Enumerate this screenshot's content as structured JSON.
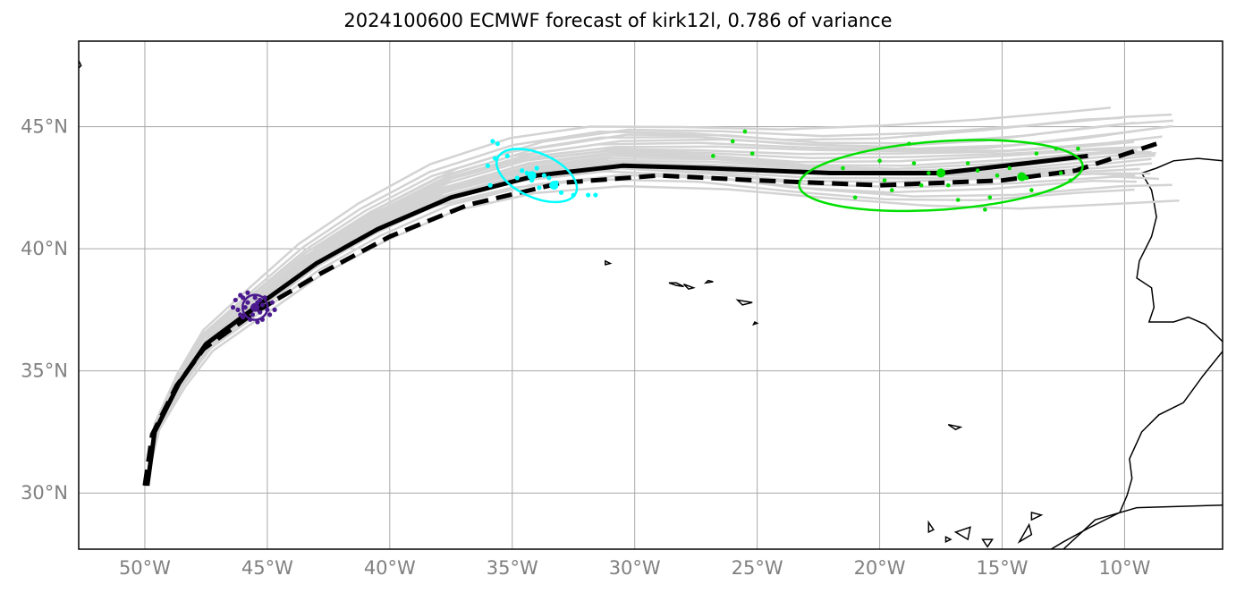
{
  "title": "2024100600 ECMWF forecast of kirk12l, 0.786 of variance",
  "map": {
    "lon_range": [
      -52.7,
      -6.0
    ],
    "lat_range": [
      27.7,
      48.5
    ],
    "lon_ticks": [
      -50,
      -45,
      -40,
      -35,
      -30,
      -25,
      -20,
      -15,
      -10
    ],
    "lat_ticks": [
      30,
      35,
      40,
      45
    ],
    "lon_tick_labels": [
      "50°W",
      "45°W",
      "40°W",
      "35°W",
      "30°W",
      "25°W",
      "20°W",
      "15°W",
      "10°W"
    ],
    "lat_tick_labels": [
      "30°N",
      "35°N",
      "40°N",
      "45°N"
    ],
    "grid": true
  },
  "colors": {
    "ensemble": "#d3d3d3",
    "track": "#000000",
    "day1": "#4b1a8f",
    "day2": "#00ffff",
    "day4": "#00e000",
    "grid": "#a8a8a8",
    "coast": "#000000"
  },
  "chart_data": {
    "type": "map-track",
    "solid_track": [
      [
        -49.9,
        30.3
      ],
      [
        -49.6,
        32.5
      ],
      [
        -48.6,
        34.5
      ],
      [
        -47.5,
        36.1
      ],
      [
        -45.5,
        37.6
      ],
      [
        -43.0,
        39.4
      ],
      [
        -40.5,
        40.8
      ],
      [
        -37.5,
        42.1
      ],
      [
        -34.0,
        43.0
      ],
      [
        -30.5,
        43.4
      ],
      [
        -27.0,
        43.3
      ],
      [
        -22.0,
        43.1
      ],
      [
        -17.5,
        43.1
      ],
      [
        -14.0,
        43.5
      ],
      [
        -11.5,
        43.8
      ]
    ],
    "dashed_track": [
      [
        -50.0,
        30.3
      ],
      [
        -49.7,
        32.4
      ],
      [
        -48.7,
        34.4
      ],
      [
        -47.6,
        35.9
      ],
      [
        -45.5,
        37.4
      ],
      [
        -42.8,
        39.0
      ],
      [
        -40.0,
        40.5
      ],
      [
        -36.8,
        41.8
      ],
      [
        -33.0,
        42.7
      ],
      [
        -29.0,
        43.0
      ],
      [
        -25.0,
        42.8
      ],
      [
        -20.0,
        42.6
      ],
      [
        -15.0,
        42.8
      ],
      [
        -12.0,
        43.2
      ],
      [
        -8.7,
        44.3
      ]
    ],
    "ensemble_base": [
      [
        -49.9,
        30.6
      ],
      [
        -49.5,
        32.7
      ],
      [
        -48.5,
        34.6
      ],
      [
        -47.4,
        36.2
      ],
      [
        -45.5,
        37.7
      ],
      [
        -43.2,
        39.5
      ],
      [
        -40.7,
        41.0
      ],
      [
        -37.8,
        42.4
      ],
      [
        -34.5,
        43.3
      ],
      [
        -31.0,
        43.7
      ],
      [
        -27.0,
        43.6
      ],
      [
        -23.0,
        43.3
      ],
      [
        -19.0,
        43.2
      ],
      [
        -15.0,
        43.3
      ],
      [
        -11.0,
        43.6
      ],
      [
        -9.0,
        43.7
      ]
    ],
    "ensemble_offsets": [
      -1.8,
      -1.4,
      -1.2,
      -1.0,
      -0.8,
      -0.6,
      -0.5,
      -0.35,
      -0.2,
      -0.1,
      0,
      0.1,
      0.2,
      0.3,
      0.45,
      0.6,
      0.75,
      0.9,
      1.05,
      1.2,
      1.35,
      1.5,
      1.7,
      1.9,
      2.2
    ],
    "day1_center": [
      -45.5,
      37.6
    ],
    "day1_points": [
      [
        -46.1,
        38.1
      ],
      [
        -45.6,
        37.3
      ],
      [
        -45.0,
        37.5
      ],
      [
        -45.8,
        37.8
      ],
      [
        -45.3,
        37.9
      ],
      [
        -46.0,
        37.2
      ],
      [
        -45.4,
        37.0
      ],
      [
        -45.9,
        37.6
      ],
      [
        -45.2,
        37.7
      ],
      [
        -44.7,
        37.5
      ],
      [
        -45.5,
        38.0
      ],
      [
        -46.2,
        37.5
      ],
      [
        -45.7,
        37.1
      ],
      [
        -45.1,
        38.0
      ],
      [
        -45.6,
        37.6
      ],
      [
        -44.9,
        37.3
      ],
      [
        -46.3,
        37.9
      ],
      [
        -45.3,
        37.4
      ],
      [
        -46.0,
        38.0
      ],
      [
        -45.4,
        37.8
      ],
      [
        -46.1,
        37.3
      ],
      [
        -45.8,
        38.2
      ],
      [
        -44.8,
        37.8
      ],
      [
        -45.2,
        37.1
      ],
      [
        -46.4,
        37.6
      ]
    ],
    "day2_ellipse": {
      "center": [
        -34.0,
        43.0
      ],
      "semi_lon": 1.75,
      "semi_lat": 0.9,
      "angle_deg": 24
    },
    "day2_points": [
      [
        -35.8,
        44.4
      ],
      [
        -35.6,
        44.3
      ],
      [
        -35.7,
        43.7
      ],
      [
        -36.0,
        43.4
      ],
      [
        -35.2,
        43.8
      ],
      [
        -34.6,
        43.2
      ],
      [
        -34.2,
        42.8
      ],
      [
        -34.0,
        43.3
      ],
      [
        -33.7,
        43.0
      ],
      [
        -33.4,
        42.6
      ],
      [
        -33.0,
        42.3
      ],
      [
        -32.5,
        42.2
      ],
      [
        -31.9,
        42.2
      ],
      [
        -31.6,
        42.2
      ],
      [
        -35.9,
        42.6
      ],
      [
        -34.4,
        43.1
      ],
      [
        -33.2,
        42.7
      ],
      [
        -34.8,
        42.9
      ],
      [
        -33.9,
        42.5
      ],
      [
        -33.5,
        42.9
      ]
    ],
    "day4_ellipse": {
      "center": [
        -17.5,
        43.0
      ],
      "semi_lon": 5.8,
      "semi_lat": 1.4,
      "angle_deg": -4
    },
    "day4_points": [
      [
        -25.5,
        44.8
      ],
      [
        -26.0,
        44.4
      ],
      [
        -26.8,
        43.8
      ],
      [
        -25.2,
        43.9
      ],
      [
        -21.5,
        43.3
      ],
      [
        -21.0,
        42.1
      ],
      [
        -20.0,
        43.6
      ],
      [
        -19.8,
        42.8
      ],
      [
        -18.8,
        44.3
      ],
      [
        -18.6,
        43.5
      ],
      [
        -18.0,
        43.1
      ],
      [
        -17.5,
        43.2
      ],
      [
        -17.2,
        42.6
      ],
      [
        -16.8,
        42.0
      ],
      [
        -16.4,
        43.5
      ],
      [
        -16.0,
        43.2
      ],
      [
        -15.7,
        41.6
      ],
      [
        -15.5,
        42.1
      ],
      [
        -14.7,
        43.3
      ],
      [
        -14.2,
        43.0
      ],
      [
        -13.8,
        42.4
      ],
      [
        -13.6,
        43.9
      ],
      [
        -12.8,
        44.1
      ],
      [
        -12.6,
        43.1
      ],
      [
        -11.9,
        44.1
      ],
      [
        -12.2,
        42.8
      ],
      [
        -19.5,
        42.4
      ],
      [
        -18.3,
        42.6
      ],
      [
        -15.2,
        43.0
      ],
      [
        -14.0,
        42.9
      ]
    ]
  },
  "geography": {
    "iberia": [
      [
        -6.0,
        43.6
      ],
      [
        -7.0,
        43.7
      ],
      [
        -8.0,
        43.6
      ],
      [
        -8.7,
        43.3
      ],
      [
        -9.3,
        43.1
      ],
      [
        -8.9,
        42.4
      ],
      [
        -8.8,
        41.9
      ],
      [
        -8.7,
        41.3
      ],
      [
        -8.9,
        40.5
      ],
      [
        -9.4,
        39.5
      ],
      [
        -9.5,
        38.8
      ],
      [
        -8.9,
        38.4
      ],
      [
        -8.8,
        37.6
      ],
      [
        -9.0,
        37.0
      ],
      [
        -8.0,
        37.0
      ],
      [
        -7.4,
        37.2
      ],
      [
        -6.7,
        36.9
      ],
      [
        -6.2,
        36.4
      ],
      [
        -6.0,
        36.2
      ]
    ],
    "morocco": [
      [
        -6.0,
        35.8
      ],
      [
        -6.8,
        34.8
      ],
      [
        -7.6,
        33.7
      ],
      [
        -8.6,
        33.2
      ],
      [
        -9.3,
        32.5
      ],
      [
        -9.8,
        31.4
      ],
      [
        -9.7,
        30.6
      ],
      [
        -9.9,
        29.9
      ],
      [
        -10.2,
        29.2
      ],
      [
        -11.4,
        28.6
      ],
      [
        -12.5,
        28.0
      ],
      [
        -13.0,
        27.7
      ]
    ],
    "africa_south": [
      [
        -12.5,
        27.7
      ],
      [
        -11.2,
        28.9
      ],
      [
        -9.5,
        29.4
      ],
      [
        -6.0,
        29.5
      ]
    ],
    "azores": [
      [
        [
          -31.2,
          39.5
        ],
        [
          -31.0,
          39.4
        ],
        [
          -31.2,
          39.35
        ]
      ],
      [
        [
          -28.6,
          38.6
        ],
        [
          -28.3,
          38.5
        ],
        [
          -28.0,
          38.45
        ],
        [
          -28.3,
          38.6
        ]
      ],
      [
        [
          -28.0,
          38.55
        ],
        [
          -27.6,
          38.4
        ],
        [
          -27.8,
          38.35
        ]
      ],
      [
        [
          -27.0,
          38.7
        ],
        [
          -26.8,
          38.65
        ],
        [
          -27.1,
          38.6
        ]
      ],
      [
        [
          -25.8,
          37.9
        ],
        [
          -25.2,
          37.8
        ],
        [
          -25.6,
          37.7
        ]
      ],
      [
        [
          -25.1,
          37.0
        ],
        [
          -25.0,
          36.95
        ],
        [
          -25.15,
          36.9
        ]
      ]
    ],
    "madeira": [
      [
        -17.2,
        32.8
      ],
      [
        -16.7,
        32.7
      ],
      [
        -16.9,
        32.6
      ]
    ],
    "canaries": [
      [
        [
          -18.0,
          28.8
        ],
        [
          -17.8,
          28.5
        ],
        [
          -18.0,
          28.4
        ]
      ],
      [
        [
          -17.3,
          28.2
        ],
        [
          -17.1,
          28.1
        ],
        [
          -17.3,
          28.0
        ]
      ],
      [
        [
          -16.9,
          28.4
        ],
        [
          -16.3,
          28.6
        ],
        [
          -16.4,
          28.1
        ]
      ],
      [
        [
          -15.8,
          28.1
        ],
        [
          -15.4,
          28.1
        ],
        [
          -15.6,
          27.8
        ]
      ],
      [
        [
          -14.3,
          28.0
        ],
        [
          -13.9,
          28.7
        ],
        [
          -13.8,
          28.3
        ]
      ],
      [
        [
          -13.8,
          29.2
        ],
        [
          -13.4,
          29.1
        ],
        [
          -13.8,
          28.9
        ]
      ]
    ],
    "newfoundland_edge": [
      [
        -52.7,
        47.7
      ],
      [
        -52.6,
        47.5
      ],
      [
        -52.7,
        47.4
      ]
    ]
  }
}
